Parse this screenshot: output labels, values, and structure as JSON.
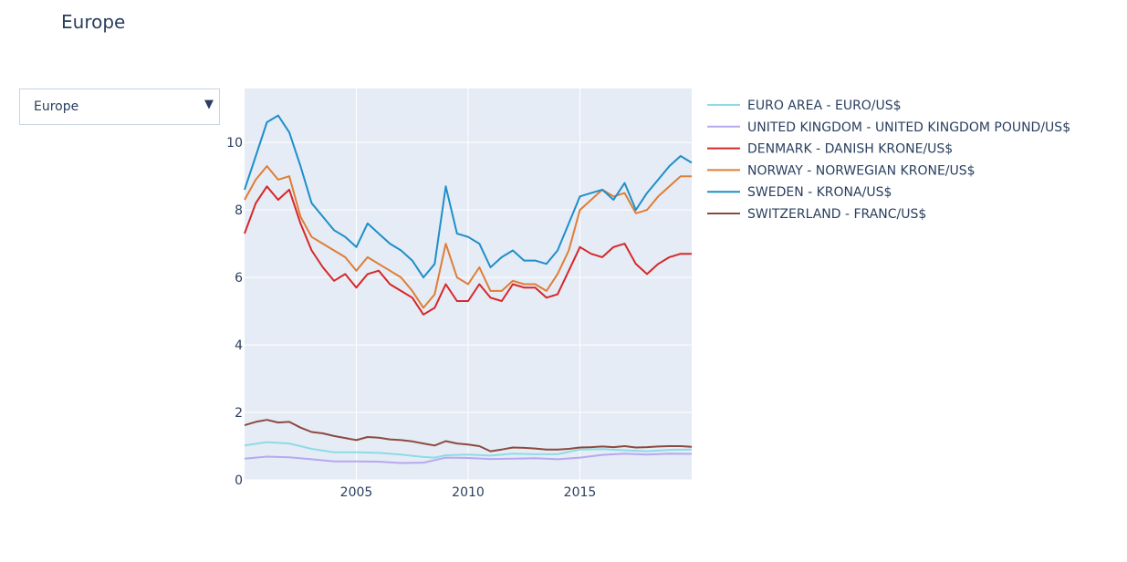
{
  "page": {
    "title": "Europe"
  },
  "dropdown": {
    "selected": "Europe"
  },
  "icons": {
    "dropdown_arrow": "triangle-down-icon"
  },
  "colors": {
    "plot_bg": "#e5ecf6",
    "grid": "#ffffff",
    "text": "#2a3f5f"
  },
  "chart_data": {
    "type": "line",
    "title": "",
    "xlabel": "",
    "ylabel": "",
    "xlim": [
      2000.0,
      2020.0
    ],
    "ylim": [
      0,
      11.6
    ],
    "xticks": [
      2005,
      2010,
      2015
    ],
    "yticks": [
      0,
      2,
      4,
      6,
      8,
      10
    ],
    "grid": true,
    "legend_position": "right",
    "series": [
      {
        "name": "EURO AREA - EURO/US$",
        "color": "#8fdbe3",
        "x": [
          2000,
          2001,
          2002,
          2003,
          2004,
          2005,
          2006,
          2007,
          2008,
          2008.5,
          2009,
          2010,
          2011,
          2012,
          2013,
          2014,
          2015,
          2016,
          2017,
          2018,
          2019,
          2020
        ],
        "y": [
          1.02,
          1.12,
          1.08,
          0.92,
          0.82,
          0.82,
          0.8,
          0.75,
          0.68,
          0.66,
          0.73,
          0.75,
          0.72,
          0.78,
          0.76,
          0.76,
          0.9,
          0.91,
          0.88,
          0.85,
          0.89,
          0.9
        ]
      },
      {
        "name": "UNITED KINGDOM - UNITED KINGDOM POUND/US$",
        "color": "#b7a8f0",
        "x": [
          2000,
          2001,
          2002,
          2003,
          2004,
          2005,
          2006,
          2007,
          2008,
          2008.8,
          2009,
          2010,
          2011,
          2012,
          2013,
          2014,
          2015,
          2016,
          2017,
          2018,
          2019,
          2020
        ],
        "y": [
          0.63,
          0.69,
          0.67,
          0.61,
          0.55,
          0.55,
          0.54,
          0.5,
          0.51,
          0.63,
          0.66,
          0.65,
          0.62,
          0.63,
          0.64,
          0.61,
          0.66,
          0.74,
          0.78,
          0.75,
          0.78,
          0.77
        ]
      },
      {
        "name": "DENMARK - DANISH KRONE/US$",
        "color": "#d62728",
        "x": [
          2000,
          2000.5,
          2001,
          2001.5,
          2002,
          2002.5,
          2003,
          2003.5,
          2004,
          2004.5,
          2005,
          2005.5,
          2006,
          2006.5,
          2007,
          2007.5,
          2008,
          2008.5,
          2009,
          2009.5,
          2010,
          2010.5,
          2011,
          2011.5,
          2012,
          2012.5,
          2013,
          2013.5,
          2014,
          2014.5,
          2015,
          2015.5,
          2016,
          2016.5,
          2017,
          2017.5,
          2018,
          2018.5,
          2019,
          2019.5,
          2020
        ],
        "y": [
          7.3,
          8.2,
          8.7,
          8.3,
          8.6,
          7.6,
          6.8,
          6.3,
          5.9,
          6.1,
          5.7,
          6.1,
          6.2,
          5.8,
          5.6,
          5.4,
          4.9,
          5.1,
          5.8,
          5.3,
          5.3,
          5.8,
          5.4,
          5.3,
          5.8,
          5.7,
          5.7,
          5.4,
          5.5,
          6.2,
          6.9,
          6.7,
          6.6,
          6.9,
          7.0,
          6.4,
          6.1,
          6.4,
          6.6,
          6.7,
          6.7
        ]
      },
      {
        "name": "NORWAY - NORWEGIAN KRONE/US$",
        "color": "#e07d33",
        "x": [
          2000,
          2000.5,
          2001,
          2001.5,
          2002,
          2002.5,
          2003,
          2003.5,
          2004,
          2004.5,
          2005,
          2005.5,
          2006,
          2006.5,
          2007,
          2007.5,
          2008,
          2008.5,
          2009,
          2009.5,
          2010,
          2010.5,
          2011,
          2011.5,
          2012,
          2012.5,
          2013,
          2013.5,
          2014,
          2014.5,
          2015,
          2015.5,
          2016,
          2016.5,
          2017,
          2017.5,
          2018,
          2018.5,
          2019,
          2019.5,
          2020
        ],
        "y": [
          8.3,
          8.9,
          9.3,
          8.9,
          9.0,
          7.8,
          7.2,
          7.0,
          6.8,
          6.6,
          6.2,
          6.6,
          6.4,
          6.2,
          6.0,
          5.6,
          5.1,
          5.5,
          7.0,
          6.0,
          5.8,
          6.3,
          5.6,
          5.6,
          5.9,
          5.8,
          5.8,
          5.6,
          6.1,
          6.8,
          8.0,
          8.3,
          8.6,
          8.4,
          8.5,
          7.9,
          8.0,
          8.4,
          8.7,
          9.0,
          9.0
        ]
      },
      {
        "name": "SWEDEN - KRONA/US$",
        "color": "#1f8ec9",
        "x": [
          2000,
          2000.5,
          2001,
          2001.5,
          2002,
          2002.5,
          2003,
          2003.5,
          2004,
          2004.5,
          2005,
          2005.5,
          2006,
          2006.5,
          2007,
          2007.5,
          2008,
          2008.5,
          2009,
          2009.5,
          2010,
          2010.5,
          2011,
          2011.5,
          2012,
          2012.5,
          2013,
          2013.5,
          2014,
          2014.5,
          2015,
          2015.5,
          2016,
          2016.5,
          2017,
          2017.5,
          2018,
          2018.5,
          2019,
          2019.5,
          2020
        ],
        "y": [
          8.6,
          9.6,
          10.6,
          10.8,
          10.3,
          9.3,
          8.2,
          7.8,
          7.4,
          7.2,
          6.9,
          7.6,
          7.3,
          7.0,
          6.8,
          6.5,
          6.0,
          6.4,
          8.7,
          7.3,
          7.2,
          7.0,
          6.3,
          6.6,
          6.8,
          6.5,
          6.5,
          6.4,
          6.8,
          7.6,
          8.4,
          8.5,
          8.6,
          8.3,
          8.8,
          8.0,
          8.5,
          8.9,
          9.3,
          9.6,
          9.4
        ]
      },
      {
        "name": "SWITZERLAND - FRANC/US$",
        "color": "#8c4a3f",
        "x": [
          2000,
          2000.5,
          2001,
          2001.5,
          2002,
          2002.5,
          2003,
          2003.5,
          2004,
          2004.5,
          2005,
          2005.5,
          2006,
          2006.5,
          2007,
          2007.5,
          2008,
          2008.5,
          2009,
          2009.5,
          2010,
          2010.5,
          2011,
          2011.5,
          2012,
          2012.5,
          2013,
          2013.5,
          2014,
          2014.5,
          2015,
          2015.5,
          2016,
          2016.5,
          2017,
          2017.5,
          2018,
          2018.5,
          2019,
          2019.5,
          2020
        ],
        "y": [
          1.62,
          1.72,
          1.78,
          1.7,
          1.72,
          1.55,
          1.42,
          1.38,
          1.3,
          1.24,
          1.18,
          1.27,
          1.25,
          1.2,
          1.18,
          1.14,
          1.08,
          1.02,
          1.15,
          1.08,
          1.05,
          1.0,
          0.85,
          0.9,
          0.96,
          0.95,
          0.93,
          0.9,
          0.9,
          0.92,
          0.96,
          0.97,
          0.99,
          0.97,
          1.0,
          0.96,
          0.97,
          0.99,
          1.0,
          1.0,
          0.98
        ]
      }
    ]
  }
}
